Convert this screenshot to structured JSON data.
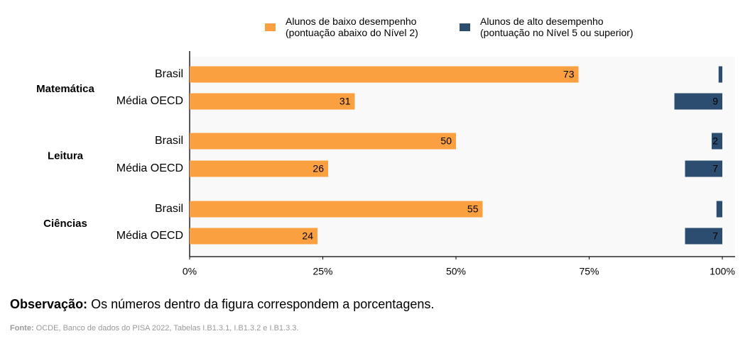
{
  "chart_data": {
    "type": "diverging-bar",
    "groups": [
      "Matemática",
      "Leitura",
      "Ciências"
    ],
    "categories": [
      "Brasil",
      "Média OECD",
      "Brasil",
      "Média OECD",
      "Brasil",
      "Média OECD"
    ],
    "series": [
      {
        "name": "Alunos de baixo desempenho\n(pontuação abaixo do Nível 2)",
        "color": "#fba040",
        "anchor": "left",
        "values": [
          73,
          31,
          50,
          26,
          55,
          24
        ]
      },
      {
        "name": "Alunos de alto desempenho\n(pontuação no Nível 5 ou superior)",
        "color": "#2c4d70",
        "anchor": "right",
        "values": [
          0.7,
          9,
          2,
          7,
          1.1,
          7
        ],
        "value_labels": [
          null,
          "9",
          "2",
          "7",
          null,
          "7"
        ]
      }
    ],
    "xlim": [
      0,
      100
    ],
    "xticks": [
      {
        "value": 0,
        "label": "0%"
      },
      {
        "value": 25,
        "label": "25%"
      },
      {
        "value": 50,
        "label": "50%"
      },
      {
        "value": 75,
        "label": "75%"
      },
      {
        "value": 100,
        "label": "100%"
      }
    ],
    "note": {
      "label": "Observação:",
      "text": "Os números dentro da figura correspondem a porcentagens."
    },
    "source": {
      "label": "Fonte:",
      "text": "OCDE, Banco de dados do PISA 2022, Tabelas I.B1.3.1, I.B1.3.2 e I.B1.3.3."
    }
  }
}
